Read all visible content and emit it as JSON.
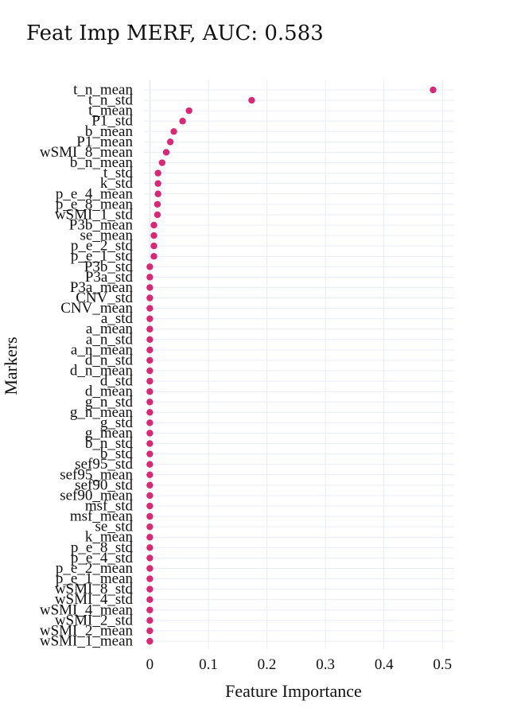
{
  "chart_data": {
    "type": "scatter",
    "title": "Feat Imp MERF, AUC: 0.583",
    "xlabel": "Feature Importance",
    "ylabel": "Markers",
    "xlim": [
      -0.01,
      0.52
    ],
    "xticks": [
      0,
      0.1,
      0.2,
      0.3,
      0.4,
      0.5
    ],
    "xtick_labels": [
      "0",
      "0.1",
      "0.2",
      "0.3",
      "0.4",
      "0.5"
    ],
    "marker_color": "#d62976",
    "grid": true,
    "legend": "none",
    "categories": [
      "t_n_mean",
      "t_n_std",
      "t_mean",
      "P1_std",
      "b_mean",
      "P1_mean",
      "wSMI_8_mean",
      "b_n_mean",
      "t_std",
      "k_std",
      "p_e_4_mean",
      "p_e_8_mean",
      "wSMI_1_std",
      "P3b_mean",
      "se_mean",
      "p_e_2_std",
      "p_e_1_std",
      "P3b_std",
      "P3a_std",
      "P3a_mean",
      "CNV_std",
      "CNV_mean",
      "a_std",
      "a_mean",
      "a_n_std",
      "a_n_mean",
      "d_n_std",
      "d_n_mean",
      "d_std",
      "d_mean",
      "g_n_std",
      "g_n_mean",
      "g_std",
      "g_mean",
      "b_n_std",
      "b_std",
      "sef95_std",
      "sef95_mean",
      "sef90_std",
      "sef90_mean",
      "msf_std",
      "msf_mean",
      "se_std",
      "k_mean",
      "p_e_8_std",
      "p_e_4_std",
      "p_e_2_mean",
      "p_e_1_mean",
      "wSMI_8_std",
      "wSMI_4_std",
      "wSMI_4_mean",
      "wSMI_2_std",
      "wSMI_2_mean",
      "wSMI_1_mean"
    ],
    "values": [
      0.484,
      0.174,
      0.067,
      0.056,
      0.041,
      0.035,
      0.028,
      0.021,
      0.014,
      0.014,
      0.014,
      0.013,
      0.013,
      0.007,
      0.007,
      0.007,
      0.007,
      0.0,
      0.0,
      0.0,
      0.0,
      0.0,
      0.0,
      0.0,
      0.0,
      0.0,
      0.0,
      0.0,
      0.0,
      0.0,
      0.0,
      0.0,
      0.0,
      0.0,
      0.0,
      0.0,
      0.0,
      0.0,
      0.0,
      0.0,
      0.0,
      0.0,
      0.0,
      0.0,
      0.0,
      0.0,
      0.0,
      0.0,
      0.0,
      0.0,
      0.0,
      0.0,
      0.0,
      0.0
    ]
  }
}
